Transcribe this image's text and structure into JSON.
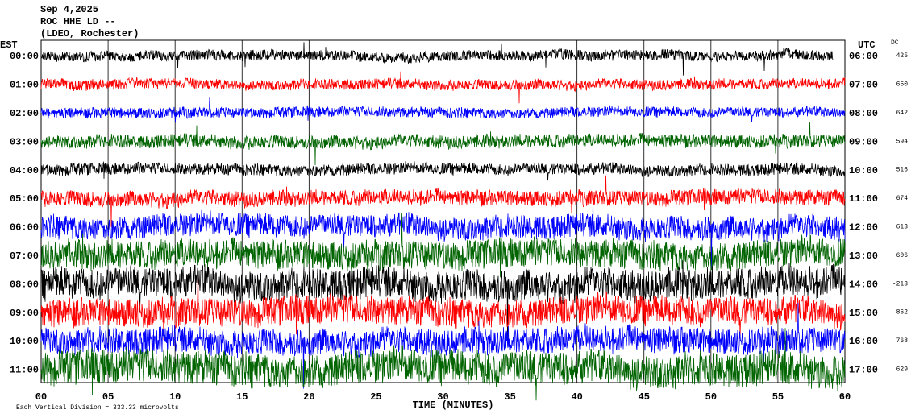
{
  "chart_data": {
    "type": "helicorder",
    "title_lines": [
      "Sep 4,2025",
      "ROC HHE LD --",
      "(LDEO, Rochester)"
    ],
    "left_axis_label": "EST",
    "right_axis_label": "UTC",
    "dc_label": "DC",
    "est": [
      "00:00",
      "01:00",
      "02:00",
      "03:00",
      "04:00",
      "05:00",
      "06:00",
      "07:00",
      "08:00",
      "09:00",
      "10:00",
      "11:00"
    ],
    "utc": [
      "06:00",
      "07:00",
      "08:00",
      "09:00",
      "10:00",
      "11:00",
      "12:00",
      "13:00",
      "14:00",
      "15:00",
      "16:00",
      "17:00"
    ],
    "dc": [
      425,
      650,
      642,
      594,
      516,
      674,
      613,
      606,
      -213,
      862,
      768,
      629
    ],
    "colors": [
      "#000000",
      "#ff0000",
      "#0000ff",
      "#006400"
    ],
    "xlim": [
      0,
      60
    ],
    "xticks": [
      {
        "value": 0,
        "label": "00"
      },
      {
        "value": 5,
        "label": "05"
      },
      10,
      15,
      20,
      25,
      30,
      35,
      40,
      45,
      50,
      55,
      60
    ],
    "xlabel": "TIME (MINUTES)",
    "footnote": "Each Vertical Division = 333.33 microvolts",
    "grid": true
  }
}
